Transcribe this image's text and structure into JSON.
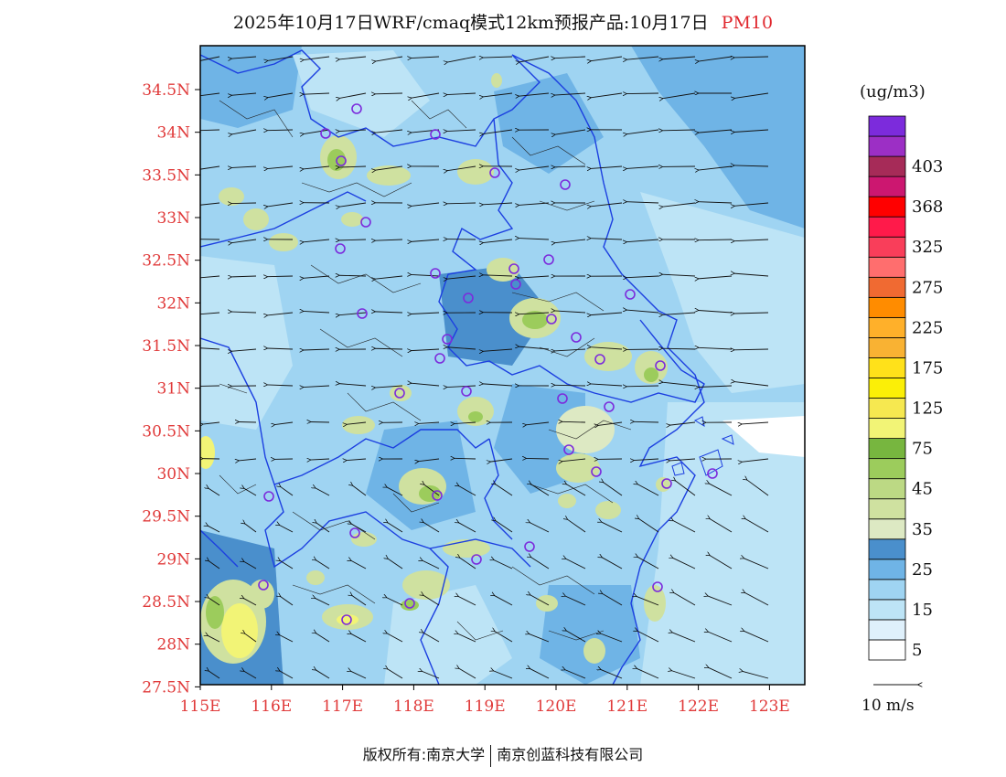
{
  "title": {
    "main": "2025年10月17日WRF/cmaq模式12km预报产品:10月17日",
    "species": "PM10"
  },
  "map": {
    "lat_labels": [
      "34.5N",
      "34N",
      "33.5N",
      "33N",
      "32.5N",
      "32N",
      "31.5N",
      "31N",
      "30.5N",
      "30N",
      "29.5N",
      "29N",
      "28.5N",
      "28N",
      "27.5N"
    ],
    "lon_labels": [
      "115E",
      "116E",
      "117E",
      "118E",
      "119E",
      "120E",
      "121E",
      "122E",
      "123E"
    ],
    "extent": {
      "lon_min": 115,
      "lon_max": 123.5,
      "lat_min": 27.5,
      "lat_max": 35
    }
  },
  "colorbar": {
    "unit": "(ug/m3)",
    "colors": [
      "#ffffff",
      "#dff0fb",
      "#bde4f6",
      "#9fd4f2",
      "#6fb4e6",
      "#4a8fcc",
      "#dde9c3",
      "#cfe1a0",
      "#bcd984",
      "#9ccc5c",
      "#77b63f",
      "#f2f476",
      "#f6e850",
      "#fbef07",
      "#ffe11a",
      "#f9b233",
      "#ffb02a",
      "#ff8c00",
      "#f06a32",
      "#ff6e6e",
      "#f93e5a",
      "#ff1a4a",
      "#ff0000",
      "#cc1770",
      "#a62b58",
      "#9c2fc5",
      "#7c2bdc"
    ],
    "labels": [
      "5",
      "15",
      "25",
      "35",
      "45",
      "75",
      "125",
      "175",
      "225",
      "275",
      "325",
      "368",
      "403"
    ]
  },
  "wind_reference": {
    "label": "10 m/s"
  },
  "footer": {
    "left": "版权所有:南京大学",
    "right": "南京创蓝科技有限公司"
  }
}
